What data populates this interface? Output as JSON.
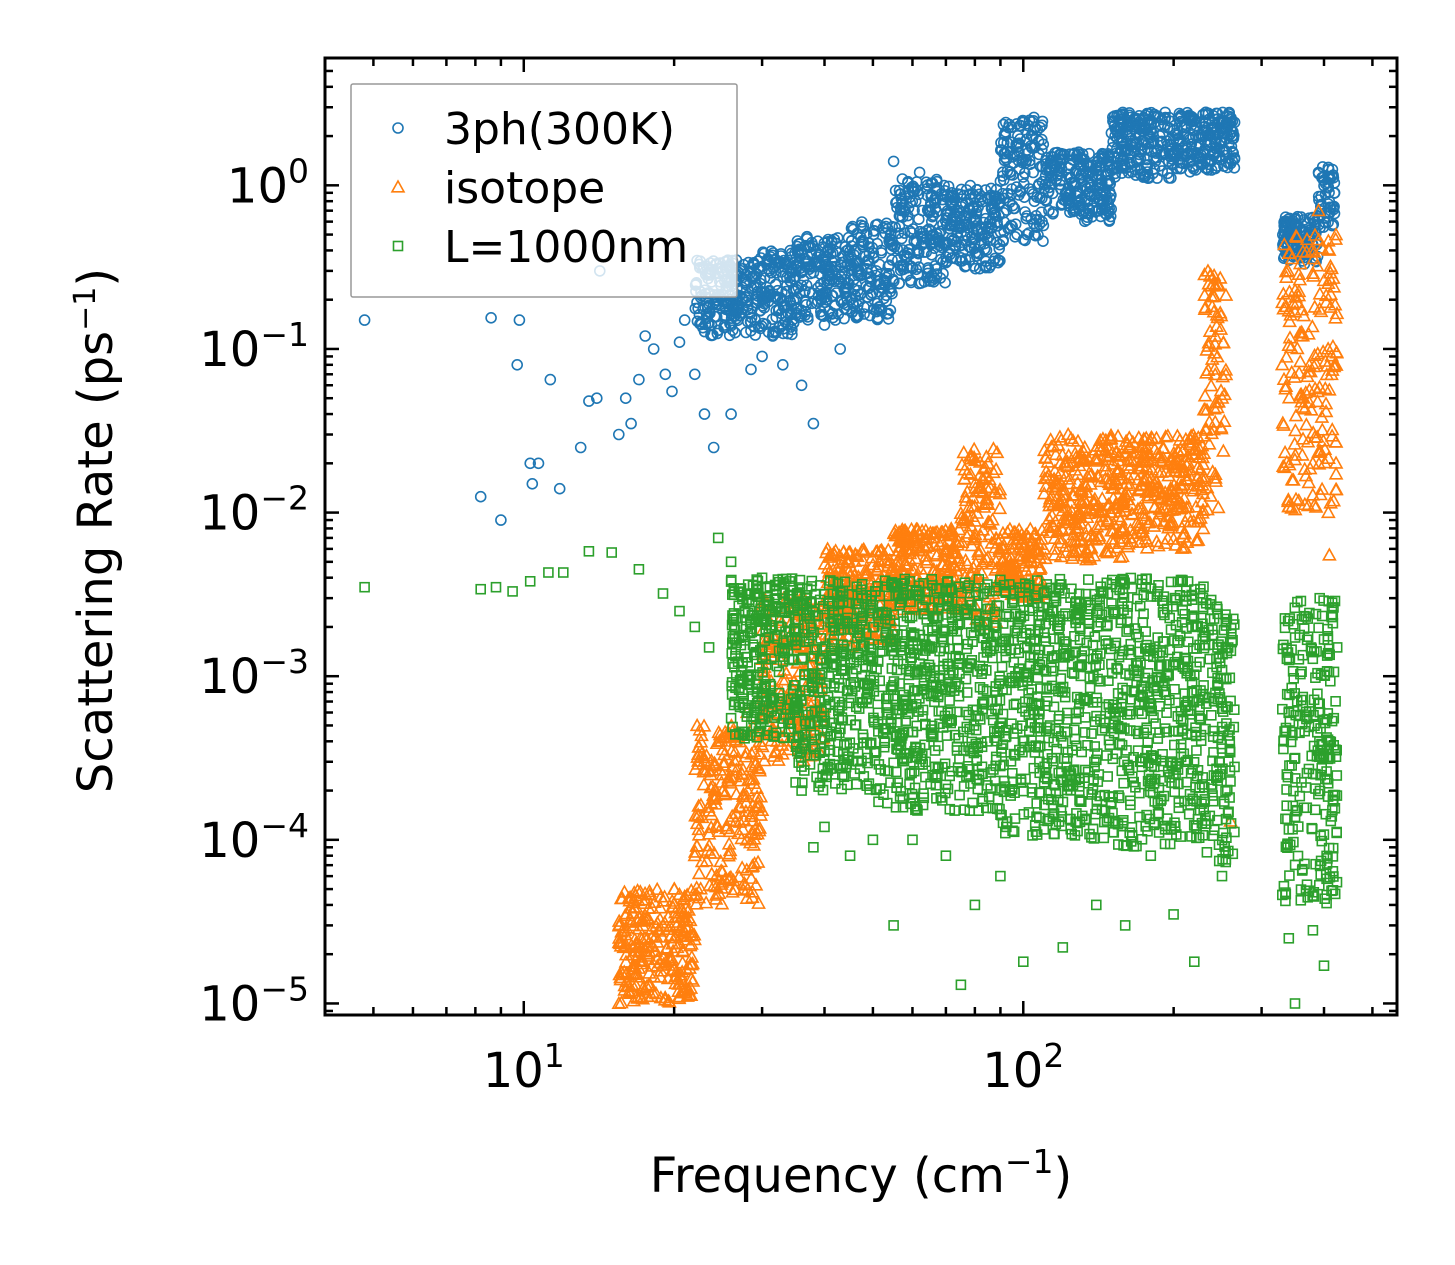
{
  "chart_data": {
    "type": "scatter",
    "title": "",
    "xlabel": "Frequency",
    "xlabel_unit_base": "cm",
    "xlabel_unit_exp": "−1",
    "ylabel": "Scattering Rate",
    "ylabel_unit_base": "ps",
    "ylabel_unit_exp": "−1",
    "xscale": "log",
    "yscale": "log",
    "xlim": [
      4.0,
      560
    ],
    "ylim": [
      8.5e-06,
      6.0
    ],
    "grid": false,
    "legend_position": "top-left",
    "x_ticks": [
      {
        "value": 10,
        "base": "10",
        "exp": "1"
      },
      {
        "value": 100,
        "base": "10",
        "exp": "2"
      }
    ],
    "y_ticks": [
      {
        "value": 1,
        "base": "10",
        "exp": "0"
      },
      {
        "value": 0.1,
        "base": "10",
        "exp": "−1"
      },
      {
        "value": 0.01,
        "base": "10",
        "exp": "−2"
      },
      {
        "value": 0.001,
        "base": "10",
        "exp": "−3"
      },
      {
        "value": 0.0001,
        "base": "10",
        "exp": "−4"
      },
      {
        "value": 1e-05,
        "base": "10",
        "exp": "−5"
      }
    ],
    "series": [
      {
        "name": "3ph(300K)",
        "marker": "circle",
        "color": "#1f77b4",
        "points": [
          [
            4.8,
            0.15
          ],
          [
            8.2,
            0.0125
          ],
          [
            8.6,
            0.155
          ],
          [
            9.0,
            0.009
          ],
          [
            9.7,
            0.08
          ],
          [
            9.8,
            0.15
          ],
          [
            10.3,
            0.02
          ],
          [
            10.4,
            0.015
          ],
          [
            10.7,
            0.02
          ],
          [
            11.3,
            0.065
          ],
          [
            11.8,
            0.014
          ],
          [
            13.0,
            0.025
          ],
          [
            13.5,
            0.048
          ],
          [
            14.0,
            0.05
          ],
          [
            14.2,
            0.3
          ],
          [
            15.5,
            0.03
          ],
          [
            16.0,
            0.05
          ],
          [
            16.4,
            0.035
          ],
          [
            17.0,
            0.065
          ],
          [
            17.5,
            0.12
          ],
          [
            18.2,
            0.1
          ],
          [
            19.2,
            0.07
          ],
          [
            19.8,
            0.055
          ],
          [
            20.5,
            0.11
          ],
          [
            21.0,
            0.15
          ],
          [
            22.0,
            0.07
          ],
          [
            23.0,
            0.04
          ],
          [
            24.0,
            0.025
          ],
          [
            24.5,
            0.13
          ],
          [
            26.0,
            0.04
          ],
          [
            27.0,
            0.16
          ],
          [
            28.5,
            0.075
          ],
          [
            30.0,
            0.09
          ],
          [
            31.5,
            0.12
          ],
          [
            33.0,
            0.08
          ],
          [
            35.0,
            0.2
          ],
          [
            36.0,
            0.06
          ],
          [
            38.0,
            0.035
          ],
          [
            40.0,
            0.14
          ],
          [
            43.0,
            0.1
          ],
          [
            48.0,
            0.18
          ],
          [
            52.0,
            0.4
          ],
          [
            55.0,
            1.4
          ],
          [
            58.0,
            0.7
          ],
          [
            62.0,
            1.2
          ],
          [
            66.0,
            0.5
          ],
          [
            72.0,
            0.9
          ],
          [
            80.0,
            0.6
          ],
          [
            88.0,
            0.85
          ],
          [
            98.0,
            1.6
          ],
          [
            105.0,
            2.6
          ],
          [
            115.0,
            1.3
          ],
          [
            125.0,
            0.8
          ],
          [
            140.0,
            1.1
          ],
          [
            160.0,
            1.6
          ],
          [
            180.0,
            2.5
          ],
          [
            200.0,
            1.9
          ],
          [
            220.0,
            2.2
          ],
          [
            250.0,
            2.4
          ],
          [
            262.0,
            2.0
          ],
          [
            340.0,
            0.5
          ],
          [
            360.0,
            0.45
          ],
          [
            390.0,
            1.2
          ],
          [
            420.0,
            0.9
          ]
        ],
        "bands": [
          [
            4.0,
            5.0,
            0,
            0
          ],
          [
            22,
            28,
            0.12,
            0.35
          ],
          [
            28,
            35,
            0.12,
            0.4
          ],
          [
            35,
            45,
            0.15,
            0.5
          ],
          [
            45,
            55,
            0.15,
            0.6
          ],
          [
            55,
            70,
            0.25,
            1.1
          ],
          [
            70,
            90,
            0.3,
            1.0
          ],
          [
            90,
            110,
            0.45,
            2.5
          ],
          [
            110,
            150,
            0.6,
            1.6
          ],
          [
            150,
            200,
            1.1,
            2.8
          ],
          [
            200,
            265,
            1.2,
            2.8
          ],
          [
            330,
            390,
            0.33,
            0.65
          ],
          [
            390,
            420,
            0.55,
            1.3
          ]
        ]
      },
      {
        "name": "isotope",
        "marker": "triangle",
        "color": "#ff7f0e",
        "points": [
          [
            15.5,
            1e-05
          ],
          [
            16.0,
            1.5e-05
          ],
          [
            17.5,
            2.5e-05
          ],
          [
            19.0,
            3e-05
          ],
          [
            20.0,
            5e-05
          ],
          [
            21.0,
            4.5e-05
          ],
          [
            22.0,
            8e-05
          ],
          [
            23.5,
            0.00015
          ],
          [
            25.0,
            0.00025
          ],
          [
            26.5,
            0.0004
          ],
          [
            28.0,
            0.0006
          ],
          [
            30.0,
            0.0008
          ],
          [
            33.0,
            0.00095
          ],
          [
            36.0,
            0.0015
          ],
          [
            40.0,
            0.0025
          ],
          [
            45.0,
            0.003
          ],
          [
            52.0,
            0.004
          ],
          [
            60.0,
            0.006
          ],
          [
            70.0,
            0.006
          ],
          [
            85.0,
            0.02
          ],
          [
            95.0,
            0.0045
          ],
          [
            110.0,
            0.006
          ],
          [
            130.0,
            0.012
          ],
          [
            150.0,
            0.01
          ],
          [
            175.0,
            0.016
          ],
          [
            200.0,
            0.02
          ],
          [
            240.0,
            0.25
          ],
          [
            250.0,
            0.05
          ],
          [
            260.0,
            0.00013
          ],
          [
            330.0,
            0.08
          ],
          [
            360.0,
            0.12
          ],
          [
            390.0,
            0.7
          ],
          [
            420.0,
            0.08
          ],
          [
            410.0,
            0.0055
          ],
          [
            380.0,
            0.02
          ]
        ],
        "bands": [
          [
            15.5,
            22,
            1e-05,
            5e-05
          ],
          [
            22,
            30,
            4e-05,
            0.0005
          ],
          [
            30,
            40,
            0.0003,
            0.003
          ],
          [
            40,
            55,
            0.0015,
            0.006
          ],
          [
            55,
            75,
            0.0025,
            0.008
          ],
          [
            75,
            90,
            0.002,
            0.025
          ],
          [
            90,
            110,
            0.003,
            0.008
          ],
          [
            110,
            160,
            0.005,
            0.03
          ],
          [
            160,
            230,
            0.006,
            0.03
          ],
          [
            230,
            255,
            0.008,
            0.3
          ],
          [
            330,
            425,
            0.01,
            0.5
          ]
        ]
      },
      {
        "name": "L=1000nm",
        "marker": "square",
        "color": "#2ca02c",
        "points": [
          [
            4.8,
            0.0035
          ],
          [
            8.2,
            0.0034
          ],
          [
            8.8,
            0.0035
          ],
          [
            9.5,
            0.0033
          ],
          [
            10.3,
            0.0038
          ],
          [
            11.2,
            0.0043
          ],
          [
            12.0,
            0.0043
          ],
          [
            13.5,
            0.0058
          ],
          [
            15.0,
            0.0057
          ],
          [
            17.0,
            0.0045
          ],
          [
            19.0,
            0.0032
          ],
          [
            20.5,
            0.0025
          ],
          [
            22.0,
            0.002
          ],
          [
            23.5,
            0.0015
          ],
          [
            24.5,
            0.007
          ],
          [
            26.0,
            0.005
          ],
          [
            28.0,
            0.0009
          ],
          [
            30.0,
            0.00075
          ],
          [
            32.0,
            0.00045
          ],
          [
            36.0,
            0.0002
          ],
          [
            38.0,
            9e-05
          ],
          [
            40.0,
            0.00012
          ],
          [
            45.0,
            8e-05
          ],
          [
            50.0,
            0.0001
          ],
          [
            55.0,
            3e-05
          ],
          [
            60.0,
            0.0001
          ],
          [
            70.0,
            8e-05
          ],
          [
            75.0,
            1.3e-05
          ],
          [
            80.0,
            4e-05
          ],
          [
            90.0,
            6e-05
          ],
          [
            100.0,
            1.8e-05
          ],
          [
            120.0,
            2.2e-05
          ],
          [
            140.0,
            4e-05
          ],
          [
            160.0,
            3e-05
          ],
          [
            180.0,
            8e-05
          ],
          [
            200.0,
            3.5e-05
          ],
          [
            220.0,
            1.8e-05
          ],
          [
            250.0,
            6e-05
          ],
          [
            340.0,
            2.5e-05
          ],
          [
            350.0,
            1e-05
          ],
          [
            380.0,
            2.8e-05
          ],
          [
            400.0,
            1.7e-05
          ],
          [
            410.0,
            0.0004
          ],
          [
            425.0,
            0.0015
          ]
        ],
        "bands": [
          [
            26,
            35,
            0.0004,
            0.004
          ],
          [
            35,
            50,
            0.0002,
            0.004
          ],
          [
            50,
            90,
            0.00015,
            0.004
          ],
          [
            90,
            150,
            0.0001,
            0.004
          ],
          [
            150,
            230,
            9e-05,
            0.004
          ],
          [
            230,
            265,
            7e-05,
            0.003
          ],
          [
            330,
            425,
            4e-05,
            0.003
          ]
        ]
      }
    ]
  }
}
